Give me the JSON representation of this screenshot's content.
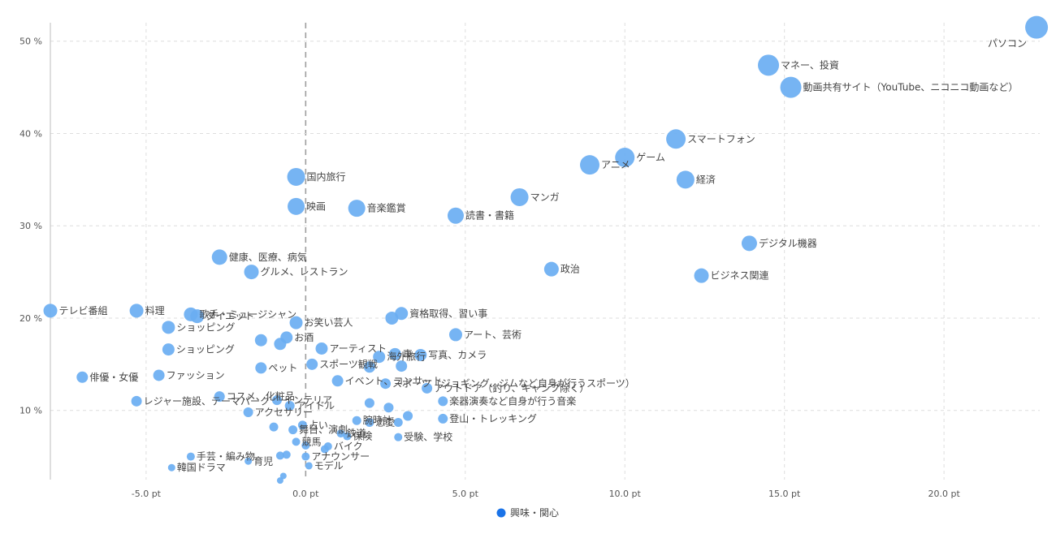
{
  "chart_data": {
    "type": "scatter",
    "xlim": [
      -8,
      23
    ],
    "ylim": [
      2.5,
      52
    ],
    "x_ticks": [
      -5,
      0,
      5,
      10,
      15,
      20
    ],
    "x_tick_labels": [
      "-5.0 pt",
      "0.0 pt",
      "5.0 pt",
      "10.0 pt",
      "15.0 pt",
      "20.0 pt"
    ],
    "y_ticks": [
      10,
      20,
      30,
      40,
      50
    ],
    "y_tick_labels": [
      "10 %",
      "20 %",
      "30 %",
      "40 %",
      "50 %"
    ],
    "grid": true,
    "legend": {
      "position": "bottom-center",
      "entries": [
        "興味・関心"
      ]
    },
    "series": [
      {
        "name": "興味・関心",
        "color": "#6aaef2",
        "points": [
          {
            "x": 22.9,
            "y": 51.5,
            "size": 28,
            "label": "パソコン"
          },
          {
            "x": 14.5,
            "y": 47.4,
            "size": 26,
            "label": "マネー、投資"
          },
          {
            "x": 15.2,
            "y": 45.0,
            "size": 26,
            "label": "動画共有サイト（YouTube、ニコニコ動画など）"
          },
          {
            "x": 11.6,
            "y": 39.4,
            "size": 24,
            "label": "スマートフォン"
          },
          {
            "x": 10.0,
            "y": 37.4,
            "size": 24,
            "label": "ゲーム"
          },
          {
            "x": 8.9,
            "y": 36.6,
            "size": 24,
            "label": "アニメ"
          },
          {
            "x": 11.9,
            "y": 35.0,
            "size": 22,
            "label": "経済"
          },
          {
            "x": -0.3,
            "y": 35.3,
            "size": 22,
            "label": "国内旅行"
          },
          {
            "x": 6.7,
            "y": 33.1,
            "size": 22,
            "label": "マンガ"
          },
          {
            "x": -0.3,
            "y": 32.1,
            "size": 21,
            "label": "映画"
          },
          {
            "x": 1.6,
            "y": 31.9,
            "size": 21,
            "label": "音楽鑑賞"
          },
          {
            "x": 4.7,
            "y": 31.1,
            "size": 20,
            "label": "読書・書籍"
          },
          {
            "x": 13.9,
            "y": 28.1,
            "size": 19,
            "label": "デジタル機器"
          },
          {
            "x": -2.7,
            "y": 26.6,
            "size": 19,
            "label": "健康、医療、病気"
          },
          {
            "x": 7.7,
            "y": 25.3,
            "size": 18,
            "label": "政治"
          },
          {
            "x": -1.7,
            "y": 25.0,
            "size": 18,
            "label": "グルメ、レストラン"
          },
          {
            "x": 12.4,
            "y": 24.6,
            "size": 18,
            "label": "ビジネス関連"
          },
          {
            "x": -8.0,
            "y": 20.8,
            "size": 17,
            "label": "テレビ番組"
          },
          {
            "x": -5.3,
            "y": 20.8,
            "size": 17,
            "label": "料理"
          },
          {
            "x": -3.4,
            "y": 20.2,
            "size": 17,
            "label": "ダイエット"
          },
          {
            "x": -3.6,
            "y": 20.4,
            "size": 17,
            "label": "歌手・ミュージシャン"
          },
          {
            "x": 2.7,
            "y": 20.0,
            "size": 16,
            "label": ""
          },
          {
            "x": 3.0,
            "y": 20.5,
            "size": 16,
            "label": "資格取得、習い事"
          },
          {
            "x": -0.3,
            "y": 19.5,
            "size": 16,
            "label": "お笑い芸人"
          },
          {
            "x": -4.3,
            "y": 19.0,
            "size": 16,
            "label": "ショッピング"
          },
          {
            "x": 4.7,
            "y": 18.2,
            "size": 16,
            "label": "アート、芸術"
          },
          {
            "x": -0.6,
            "y": 17.9,
            "size": 15,
            "label": "お酒"
          },
          {
            "x": -1.4,
            "y": 17.6,
            "size": 15,
            "label": ""
          },
          {
            "x": -0.8,
            "y": 17.2,
            "size": 15,
            "label": ""
          },
          {
            "x": 0.5,
            "y": 16.7,
            "size": 15,
            "label": "アーティスト"
          },
          {
            "x": -4.3,
            "y": 16.6,
            "size": 15,
            "label": "ショッピング"
          },
          {
            "x": 2.8,
            "y": 16.1,
            "size": 15,
            "label": "車"
          },
          {
            "x": 3.6,
            "y": 16.0,
            "size": 15,
            "label": "写真、カメラ"
          },
          {
            "x": 2.3,
            "y": 15.8,
            "size": 15,
            "label": "海外旅行"
          },
          {
            "x": 0.2,
            "y": 15.0,
            "size": 14,
            "label": "スポーツ観戦"
          },
          {
            "x": -1.4,
            "y": 14.6,
            "size": 14,
            "label": "ペット"
          },
          {
            "x": 2.0,
            "y": 14.7,
            "size": 14,
            "label": ""
          },
          {
            "x": 3.0,
            "y": 14.8,
            "size": 14,
            "label": ""
          },
          {
            "x": -4.6,
            "y": 13.8,
            "size": 14,
            "label": "ファッション"
          },
          {
            "x": -7.0,
            "y": 13.6,
            "size": 14,
            "label": "俳優・女優"
          },
          {
            "x": 1.0,
            "y": 13.2,
            "size": 14,
            "label": "イベント、コンサート"
          },
          {
            "x": 2.5,
            "y": 12.9,
            "size": 13,
            "label": "スポーツ（ジョギング、ジムなど自身が行うスポーツ）"
          },
          {
            "x": 3.8,
            "y": 12.4,
            "size": 13,
            "label": "アウトドア（釣り、キャンプ除く）"
          },
          {
            "x": -2.7,
            "y": 11.5,
            "size": 13,
            "label": "コスメ、化粧品"
          },
          {
            "x": -0.9,
            "y": 11.1,
            "size": 12,
            "label": "インテリア"
          },
          {
            "x": 4.3,
            "y": 11.0,
            "size": 12,
            "label": "楽器演奏など自身が行う音楽"
          },
          {
            "x": -5.3,
            "y": 11.0,
            "size": 13,
            "label": "レジャー施設、テーマパーク"
          },
          {
            "x": -0.5,
            "y": 10.5,
            "size": 12,
            "label": "アイドル"
          },
          {
            "x": 2.0,
            "y": 10.8,
            "size": 12,
            "label": ""
          },
          {
            "x": 2.6,
            "y": 10.3,
            "size": 12,
            "label": ""
          },
          {
            "x": -1.8,
            "y": 9.8,
            "size": 12,
            "label": "アクセサリー"
          },
          {
            "x": 3.2,
            "y": 9.4,
            "size": 12,
            "label": ""
          },
          {
            "x": 4.3,
            "y": 9.1,
            "size": 12,
            "label": "登山・トレッキング"
          },
          {
            "x": 1.6,
            "y": 8.9,
            "size": 11,
            "label": "腕時計"
          },
          {
            "x": 2.0,
            "y": 8.7,
            "size": 11,
            "label": "恋愛"
          },
          {
            "x": 2.9,
            "y": 8.7,
            "size": 11,
            "label": ""
          },
          {
            "x": -0.1,
            "y": 8.4,
            "size": 11,
            "label": "占い"
          },
          {
            "x": -1.0,
            "y": 8.2,
            "size": 11,
            "label": ""
          },
          {
            "x": -0.4,
            "y": 7.9,
            "size": 11,
            "label": "舞台、演劇"
          },
          {
            "x": 1.1,
            "y": 7.5,
            "size": 10,
            "label": "鉄道"
          },
          {
            "x": 1.3,
            "y": 7.2,
            "size": 10,
            "label": "保険"
          },
          {
            "x": 2.9,
            "y": 7.1,
            "size": 10,
            "label": "受験、学校"
          },
          {
            "x": -0.3,
            "y": 6.6,
            "size": 10,
            "label": "競馬"
          },
          {
            "x": 0.0,
            "y": 6.2,
            "size": 10,
            "label": ""
          },
          {
            "x": 0.7,
            "y": 6.1,
            "size": 10,
            "label": "バイク"
          },
          {
            "x": 0.6,
            "y": 5.8,
            "size": 10,
            "label": ""
          },
          {
            "x": -0.6,
            "y": 5.2,
            "size": 10,
            "label": ""
          },
          {
            "x": -0.8,
            "y": 5.1,
            "size": 10,
            "label": ""
          },
          {
            "x": -3.6,
            "y": 5.0,
            "size": 10,
            "label": "手芸・編み物"
          },
          {
            "x": 0.0,
            "y": 5.0,
            "size": 10,
            "label": "アナウンサー"
          },
          {
            "x": -1.8,
            "y": 4.5,
            "size": 9,
            "label": "育児"
          },
          {
            "x": 0.1,
            "y": 4.0,
            "size": 9,
            "label": "モデル"
          },
          {
            "x": -4.2,
            "y": 3.8,
            "size": 9,
            "label": "韓国ドラマ"
          },
          {
            "x": -0.7,
            "y": 2.9,
            "size": 8,
            "label": ""
          },
          {
            "x": -0.8,
            "y": 2.4,
            "size": 8,
            "label": ""
          }
        ]
      }
    ]
  }
}
